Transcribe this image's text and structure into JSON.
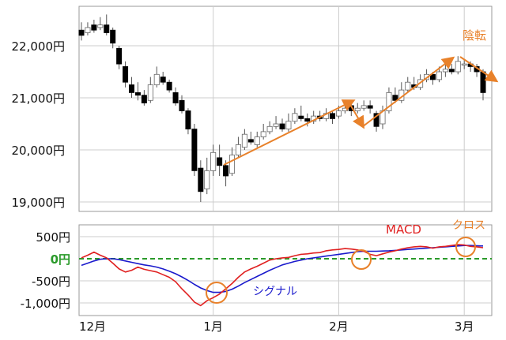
{
  "colors": {
    "up_candle": "#ffffff",
    "down_candle": "#000000",
    "candle_stroke": "#555555",
    "grid": "#cccccc",
    "annotation_orange": "#e8812a",
    "macd_line": "#e02020",
    "signal_line": "#1a1acc",
    "zero_line": "#2a9a2a",
    "zero_label": "#2a9a2a"
  },
  "chart_data": [
    {
      "type": "candlestick",
      "title": "",
      "ylabel": "",
      "ylim": [
        18800,
        22600
      ],
      "grid": true,
      "y_ticks": [
        {
          "value": 19000,
          "label": "19,000円"
        },
        {
          "value": 20000,
          "label": "20,000円"
        },
        {
          "value": 21000,
          "label": "21,000円"
        },
        {
          "value": 22000,
          "label": "22,000円"
        }
      ],
      "x_ticks": [
        {
          "index": 0,
          "label": "12月"
        },
        {
          "index": 21,
          "label": "1月"
        },
        {
          "index": 41,
          "label": "2月"
        },
        {
          "index": 61,
          "label": "3月"
        }
      ],
      "candles": [
        [
          22300,
          22200,
          22450,
          22100
        ],
        [
          22250,
          22350,
          22450,
          22200
        ],
        [
          22400,
          22300,
          22500,
          22250
        ],
        [
          22350,
          22400,
          22550,
          22300
        ],
        [
          22400,
          22250,
          22600,
          22200
        ],
        [
          22300,
          22050,
          22350,
          21950
        ],
        [
          21950,
          21650,
          22000,
          21550
        ],
        [
          21600,
          21300,
          21700,
          21200
        ],
        [
          21250,
          21100,
          21400,
          21000
        ],
        [
          21100,
          21050,
          21300,
          20950
        ],
        [
          21050,
          20900,
          21150,
          20850
        ],
        [
          20950,
          21250,
          21400,
          20900
        ],
        [
          21250,
          21450,
          21600,
          21200
        ],
        [
          21400,
          21300,
          21500,
          21250
        ],
        [
          21300,
          21150,
          21350,
          21100
        ],
        [
          21100,
          20900,
          21200,
          20850
        ],
        [
          20950,
          20750,
          21050,
          20700
        ],
        [
          20750,
          20400,
          20800,
          20300
        ],
        [
          20400,
          19600,
          20500,
          19500
        ],
        [
          19650,
          19200,
          19800,
          19000
        ],
        [
          19250,
          19600,
          19850,
          19150
        ],
        [
          19600,
          19950,
          20100,
          19500
        ],
        [
          19850,
          19700,
          20100,
          19500
        ],
        [
          19700,
          19500,
          19800,
          19300
        ],
        [
          19550,
          19900,
          20050,
          19500
        ],
        [
          19900,
          20100,
          20250,
          19850
        ],
        [
          20050,
          20300,
          20400,
          20000
        ],
        [
          20200,
          20150,
          20350,
          20100
        ],
        [
          20100,
          20250,
          20350,
          20050
        ],
        [
          20250,
          20350,
          20500,
          20200
        ],
        [
          20350,
          20450,
          20550,
          20300
        ],
        [
          20450,
          20500,
          20650,
          20400
        ],
        [
          20500,
          20400,
          20600,
          20350
        ],
        [
          20400,
          20550,
          20700,
          20350
        ],
        [
          20550,
          20700,
          20800,
          20500
        ],
        [
          20650,
          20600,
          20850,
          20550
        ],
        [
          20600,
          20550,
          20700,
          20450
        ],
        [
          20550,
          20650,
          20750,
          20500
        ],
        [
          20650,
          20600,
          20750,
          20550
        ],
        [
          20600,
          20700,
          20800,
          20550
        ],
        [
          20700,
          20600,
          20750,
          20500
        ],
        [
          20650,
          20750,
          20850,
          20600
        ],
        [
          20750,
          20800,
          20900,
          20700
        ],
        [
          20850,
          20750,
          20950,
          20650
        ],
        [
          20750,
          20800,
          20900,
          20700
        ],
        [
          20800,
          20850,
          20950,
          20750
        ],
        [
          20850,
          20800,
          20950,
          20700
        ],
        [
          20700,
          20450,
          20750,
          20350
        ],
        [
          20500,
          20750,
          20850,
          20400
        ],
        [
          20750,
          21100,
          21200,
          20700
        ],
        [
          21050,
          20950,
          21200,
          20900
        ],
        [
          20950,
          21150,
          21300,
          20900
        ],
        [
          21150,
          21300,
          21400,
          21100
        ],
        [
          21250,
          21200,
          21400,
          21150
        ],
        [
          21200,
          21350,
          21450,
          21150
        ],
        [
          21350,
          21450,
          21550,
          21300
        ],
        [
          21450,
          21350,
          21500,
          21250
        ],
        [
          21350,
          21500,
          21600,
          21300
        ],
        [
          21500,
          21550,
          21650,
          21400
        ],
        [
          21550,
          21500,
          21650,
          21450
        ],
        [
          21500,
          21700,
          21800,
          21450
        ],
        [
          21650,
          21650,
          21750,
          21550
        ],
        [
          21650,
          21600,
          21700,
          21500
        ],
        [
          21600,
          21500,
          21650,
          21400
        ],
        [
          21500,
          21100,
          21550,
          20950
        ]
      ],
      "annotations": [
        {
          "text": "陰転",
          "kind": "label"
        }
      ]
    },
    {
      "type": "line",
      "title": "",
      "ylim": [
        -1200,
        650
      ],
      "grid": true,
      "y_ticks": [
        {
          "value": 500,
          "label": "500円"
        },
        {
          "value": 0,
          "label": "0円"
        },
        {
          "value": -500,
          "label": "-500円"
        },
        {
          "value": -1000,
          "label": "-1,000円"
        }
      ],
      "x_ticks": [
        {
          "index": 0,
          "label": "12月"
        },
        {
          "index": 21,
          "label": "1月"
        },
        {
          "index": 41,
          "label": "2月"
        },
        {
          "index": 61,
          "label": "3月"
        }
      ],
      "series": [
        {
          "name": "MACD",
          "values": [
            20,
            80,
            150,
            80,
            20,
            -100,
            -230,
            -300,
            -260,
            -190,
            -240,
            -270,
            -300,
            -360,
            -420,
            -520,
            -680,
            -820,
            -980,
            -1060,
            -950,
            -880,
            -800,
            -680,
            -560,
            -420,
            -300,
            -230,
            -170,
            -100,
            -30,
            0,
            20,
            30,
            70,
            100,
            110,
            130,
            140,
            180,
            200,
            210,
            230,
            220,
            200,
            170,
            100,
            70,
            110,
            150,
            180,
            220,
            250,
            270,
            280,
            270,
            240,
            270,
            280,
            300,
            320,
            310,
            280,
            270,
            250
          ]
        },
        {
          "name": "シグナル",
          "values": [
            -150,
            -100,
            -50,
            -10,
            0,
            0,
            -20,
            -50,
            -80,
            -110,
            -140,
            -160,
            -190,
            -230,
            -280,
            -340,
            -410,
            -490,
            -580,
            -660,
            -720,
            -760,
            -760,
            -740,
            -690,
            -620,
            -540,
            -470,
            -400,
            -330,
            -260,
            -200,
            -140,
            -100,
            -60,
            -30,
            0,
            20,
            40,
            60,
            80,
            100,
            120,
            140,
            160,
            170,
            170,
            170,
            175,
            180,
            190,
            200,
            210,
            220,
            230,
            240,
            250,
            260,
            270,
            280,
            290,
            300,
            300,
            295,
            290
          ]
        }
      ],
      "annotations": [
        {
          "text": "MACD",
          "kind": "label"
        },
        {
          "text": "シグナル",
          "kind": "label"
        },
        {
          "text": "クロス",
          "kind": "label"
        }
      ]
    }
  ]
}
